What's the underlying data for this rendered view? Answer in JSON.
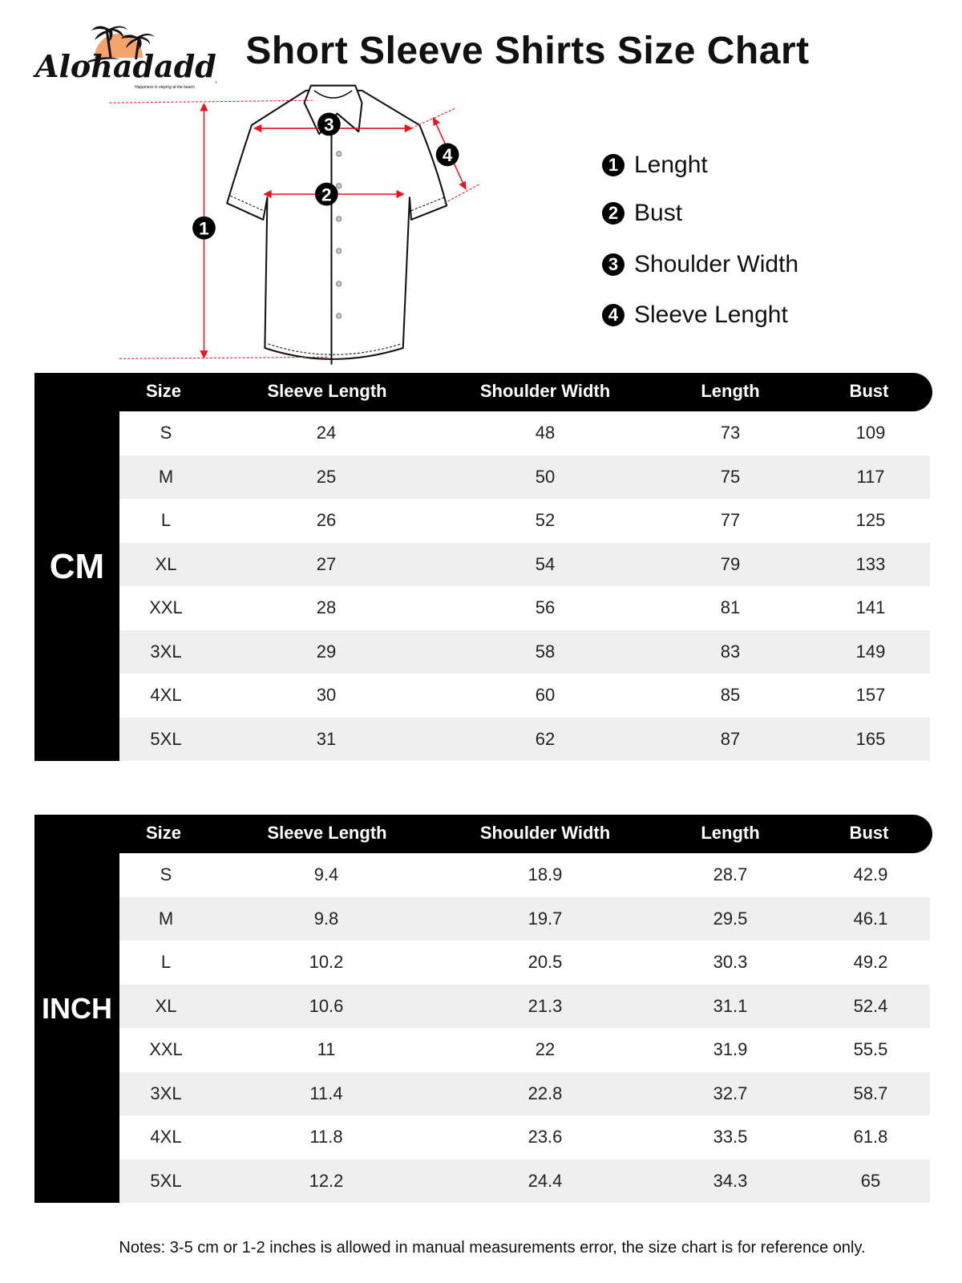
{
  "brand": {
    "name": "Alohadaddy",
    "tagline": "Happiness is staying at the beach",
    "accent": "#f4a36c"
  },
  "title": "Short Sleeve Shirts Size Chart",
  "diagram": {
    "markers": [
      "1",
      "2",
      "3",
      "4"
    ],
    "measure_color": "#e8131b"
  },
  "legend": [
    {
      "num": "1",
      "label": "Lenght"
    },
    {
      "num": "2",
      "label": "Bust"
    },
    {
      "num": "3",
      "label": "Shoulder Width"
    },
    {
      "num": "4",
      "label": "Sleeve Lenght"
    }
  ],
  "columns": [
    "Size",
    "Sleeve Length",
    "Shoulder Width",
    "Length",
    "Bust"
  ],
  "tables": [
    {
      "unit": "CM",
      "rows": [
        [
          "S",
          "24",
          "48",
          "73",
          "109"
        ],
        [
          "M",
          "25",
          "50",
          "75",
          "117"
        ],
        [
          "L",
          "26",
          "52",
          "77",
          "125"
        ],
        [
          "XL",
          "27",
          "54",
          "79",
          "133"
        ],
        [
          "XXL",
          "28",
          "56",
          "81",
          "141"
        ],
        [
          "3XL",
          "29",
          "58",
          "83",
          "149"
        ],
        [
          "4XL",
          "30",
          "60",
          "85",
          "157"
        ],
        [
          "5XL",
          "31",
          "62",
          "87",
          "165"
        ]
      ]
    },
    {
      "unit": "INCH",
      "rows": [
        [
          "S",
          "9.4",
          "18.9",
          "28.7",
          "42.9"
        ],
        [
          "M",
          "9.8",
          "19.7",
          "29.5",
          "46.1"
        ],
        [
          "L",
          "10.2",
          "20.5",
          "30.3",
          "49.2"
        ],
        [
          "XL",
          "10.6",
          "21.3",
          "31.1",
          "52.4"
        ],
        [
          "XXL",
          "11",
          "22",
          "31.9",
          "55.5"
        ],
        [
          "3XL",
          "11.4",
          "22.8",
          "32.7",
          "58.7"
        ],
        [
          "4XL",
          "11.8",
          "23.6",
          "33.5",
          "61.8"
        ],
        [
          "5XL",
          "12.2",
          "24.4",
          "34.3",
          "65"
        ]
      ]
    }
  ],
  "notes": "Notes: 3-5 cm or 1-2 inches is allowed in manual measurements error, the size chart is for reference only."
}
